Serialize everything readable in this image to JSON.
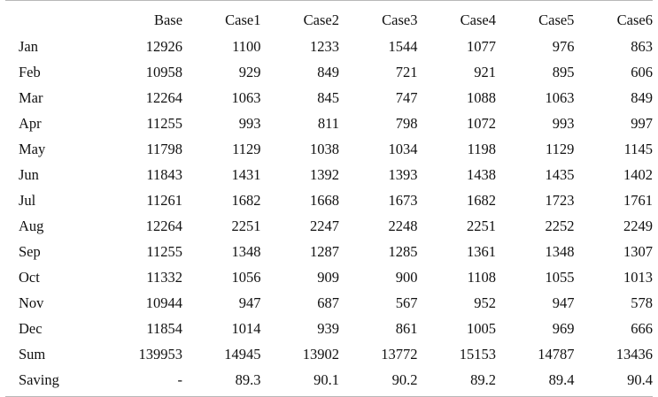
{
  "table": {
    "columns": [
      "",
      "Base",
      "Case1",
      "Case2",
      "Case3",
      "Case4",
      "Case5",
      "Case6"
    ],
    "rows": [
      {
        "label": "Jan",
        "values": [
          "12926",
          "1100",
          "1233",
          "1544",
          "1077",
          "976",
          "863"
        ]
      },
      {
        "label": "Feb",
        "values": [
          "10958",
          "929",
          "849",
          "721",
          "921",
          "895",
          "606"
        ]
      },
      {
        "label": "Mar",
        "values": [
          "12264",
          "1063",
          "845",
          "747",
          "1088",
          "1063",
          "849"
        ]
      },
      {
        "label": "Apr",
        "values": [
          "11255",
          "993",
          "811",
          "798",
          "1072",
          "993",
          "997"
        ]
      },
      {
        "label": "May",
        "values": [
          "11798",
          "1129",
          "1038",
          "1034",
          "1198",
          "1129",
          "1145"
        ]
      },
      {
        "label": "Jun",
        "values": [
          "11843",
          "1431",
          "1392",
          "1393",
          "1438",
          "1435",
          "1402"
        ]
      },
      {
        "label": "Jul",
        "values": [
          "11261",
          "1682",
          "1668",
          "1673",
          "1682",
          "1723",
          "1761"
        ]
      },
      {
        "label": "Aug",
        "values": [
          "12264",
          "2251",
          "2247",
          "2248",
          "2251",
          "2252",
          "2249"
        ]
      },
      {
        "label": "Sep",
        "values": [
          "11255",
          "1348",
          "1287",
          "1285",
          "1361",
          "1348",
          "1307"
        ]
      },
      {
        "label": "Oct",
        "values": [
          "11332",
          "1056",
          "909",
          "900",
          "1108",
          "1055",
          "1013"
        ]
      },
      {
        "label": "Nov",
        "values": [
          "10944",
          "947",
          "687",
          "567",
          "952",
          "947",
          "578"
        ]
      },
      {
        "label": "Dec",
        "values": [
          "11854",
          "1014",
          "939",
          "861",
          "1005",
          "969",
          "666"
        ]
      },
      {
        "label": "Sum",
        "values": [
          "139953",
          "14945",
          "13902",
          "13772",
          "15153",
          "14787",
          "13436"
        ]
      },
      {
        "label": "Saving",
        "values": [
          "-",
          "89.3",
          "90.1",
          "90.2",
          "89.2",
          "89.4",
          "90.4"
        ]
      }
    ]
  },
  "chart_data": {
    "type": "table",
    "columns": [
      "",
      "Base",
      "Case1",
      "Case2",
      "Case3",
      "Case4",
      "Case5",
      "Case6"
    ],
    "rows": [
      [
        "Jan",
        12926,
        1100,
        1233,
        1544,
        1077,
        976,
        863
      ],
      [
        "Feb",
        10958,
        929,
        849,
        721,
        921,
        895,
        606
      ],
      [
        "Mar",
        12264,
        1063,
        845,
        747,
        1088,
        1063,
        849
      ],
      [
        "Apr",
        11255,
        993,
        811,
        798,
        1072,
        993,
        997
      ],
      [
        "May",
        11798,
        1129,
        1038,
        1034,
        1198,
        1129,
        1145
      ],
      [
        "Jun",
        11843,
        1431,
        1392,
        1393,
        1438,
        1435,
        1402
      ],
      [
        "Jul",
        11261,
        1682,
        1668,
        1673,
        1682,
        1723,
        1761
      ],
      [
        "Aug",
        12264,
        2251,
        2247,
        2248,
        2251,
        2252,
        2249
      ],
      [
        "Sep",
        11255,
        1348,
        1287,
        1285,
        1361,
        1348,
        1307
      ],
      [
        "Oct",
        11332,
        1056,
        909,
        900,
        1108,
        1055,
        1013
      ],
      [
        "Nov",
        10944,
        947,
        687,
        567,
        952,
        947,
        578
      ],
      [
        "Dec",
        11854,
        1014,
        939,
        861,
        1005,
        969,
        666
      ],
      [
        "Sum",
        139953,
        14945,
        13902,
        13772,
        15153,
        14787,
        13436
      ],
      [
        "Saving",
        "-",
        89.3,
        90.1,
        90.2,
        89.2,
        89.4,
        90.4
      ]
    ]
  }
}
